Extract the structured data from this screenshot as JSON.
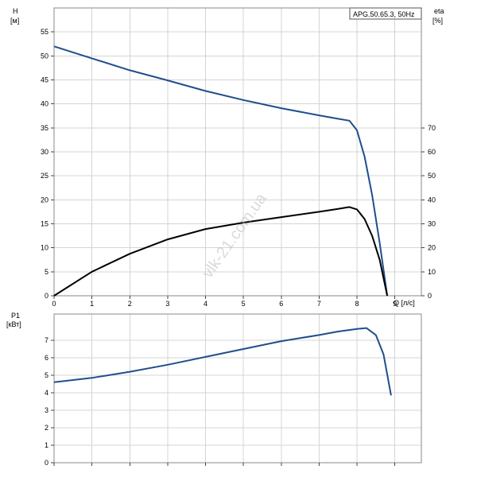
{
  "chart_data": [
    {
      "type": "line",
      "legend": "APG.50.65.3, 50Hz",
      "legend_placement": "top-right",
      "grid": true,
      "xlabel": "Q [л/с]",
      "xlim": [
        0,
        9.7
      ],
      "xticks": [
        0,
        1,
        2,
        3,
        4,
        5,
        6,
        7,
        8,
        9
      ],
      "ylabel_left": "H",
      "ylabel_left_unit": "[м]",
      "ylim_left": [
        0,
        60
      ],
      "yticks_left": [
        0,
        5,
        10,
        15,
        20,
        25,
        30,
        35,
        40,
        45,
        50,
        55
      ],
      "ylabel_right": "eta",
      "ylabel_right_unit": "[%]",
      "ylim_right": [
        0,
        120
      ],
      "yticks_right": [
        0,
        10,
        20,
        30,
        40,
        50,
        60,
        70
      ],
      "series": [
        {
          "axis": "left",
          "color": "#1f4e8c",
          "x": [
            0,
            1,
            2,
            3,
            4,
            5,
            6,
            7,
            7.5,
            7.8,
            8.0,
            8.2,
            8.4,
            8.6,
            8.8
          ],
          "y": [
            52,
            49.5,
            47,
            44.9,
            42.7,
            40.8,
            39.1,
            37.6,
            36.9,
            36.5,
            34.5,
            29,
            21,
            11,
            0
          ]
        },
        {
          "axis": "right",
          "color": "#000000",
          "x": [
            0,
            1,
            2,
            3,
            4,
            5,
            6,
            7,
            7.5,
            7.8,
            8.0,
            8.2,
            8.4,
            8.6,
            8.8
          ],
          "y": [
            0,
            10,
            17.5,
            23.5,
            27.8,
            30.5,
            32.8,
            35,
            36.2,
            37,
            36,
            32,
            25,
            15,
            0
          ]
        }
      ]
    },
    {
      "type": "line",
      "grid": true,
      "xlim": [
        0,
        9.7
      ],
      "xticks": [
        0,
        1,
        2,
        3,
        4,
        5,
        6,
        7,
        8,
        9
      ],
      "ylabel": "P1",
      "ylabel_unit": "[кВт]",
      "ylim": [
        0,
        8.5
      ],
      "yticks": [
        0,
        1,
        2,
        3,
        4,
        5,
        6,
        7
      ],
      "series": [
        {
          "color": "#1f4e8c",
          "x": [
            0,
            1,
            2,
            3,
            4,
            5,
            6,
            7,
            7.5,
            8.0,
            8.25,
            8.5,
            8.7,
            8.9
          ],
          "y": [
            4.6,
            4.85,
            5.2,
            5.6,
            6.05,
            6.5,
            6.95,
            7.3,
            7.5,
            7.65,
            7.7,
            7.3,
            6.2,
            3.85
          ]
        }
      ]
    }
  ],
  "watermark": "vlk-21.com.ua"
}
